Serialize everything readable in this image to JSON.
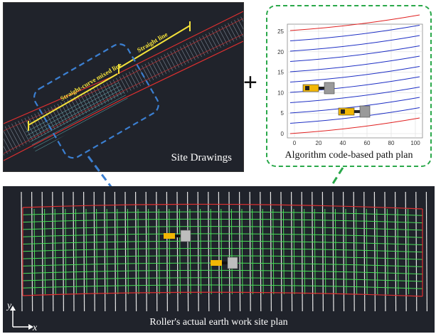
{
  "site_drawings": {
    "label": "Site Drawings",
    "annotation_straight": "Straight line",
    "annotation_mixed": "Straight-curve mixed line"
  },
  "path_plan": {
    "caption": "Algorithm code-based path plan",
    "y_ticks": [
      "0",
      "5",
      "10",
      "15",
      "20",
      "25"
    ],
    "x_ticks": [
      "0",
      "20",
      "40",
      "60",
      "80",
      "100"
    ]
  },
  "bottom": {
    "caption": "Roller's actual earth work site plan",
    "axis_y": "y",
    "axis_x": "x"
  },
  "plus": "+",
  "colors": {
    "panel_bg": "#20232b",
    "dashed_blue": "#3b7fd1",
    "dashed_green": "#2aa84a",
    "path_red": "#e02020",
    "path_blue": "#1e2fc4",
    "grid_green": "#4ade5a",
    "roller_yellow": "#f2b705"
  }
}
